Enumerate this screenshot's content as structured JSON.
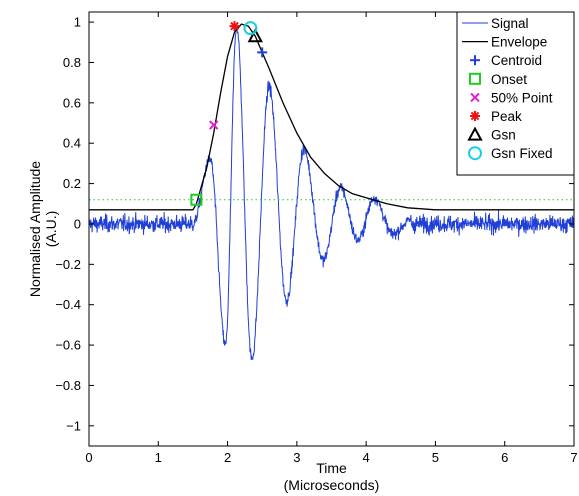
{
  "chart_data": {
    "type": "line",
    "xlabel": "Time",
    "xlabel_unit": "(Microseconds)",
    "ylabel": "Normalised Amplitude",
    "ylabel_unit": "(A.U.)",
    "xlim": [
      0,
      7
    ],
    "ylim": [
      -1.1,
      1.05
    ],
    "xticks": [
      "0",
      "1",
      "2",
      "3",
      "4",
      "5",
      "6",
      "7"
    ],
    "yticks": [
      "−1",
      "−0.8",
      "−0.6",
      "−0.4",
      "−0.2",
      "0",
      "0.2",
      "0.4",
      "0.6",
      "0.8",
      "1"
    ],
    "grid": false,
    "legend_position": "top-right",
    "threshold_line": {
      "y": 0.12,
      "style": "dotted",
      "color": "#22cc22"
    },
    "series": [
      {
        "name": "Signal",
        "kind": "line",
        "color": "#1f3fd6",
        "noise_std": 0.03,
        "baseline_x": [
          0,
          1.5
        ],
        "peaks": [
          {
            "x": 1.75,
            "y": 0.32
          },
          {
            "x": 1.97,
            "y": -0.6
          },
          {
            "x": 2.13,
            "y": 0.98
          },
          {
            "x": 2.35,
            "y": -0.67
          },
          {
            "x": 2.6,
            "y": 0.68
          },
          {
            "x": 2.85,
            "y": -0.38
          },
          {
            "x": 3.1,
            "y": 0.37
          },
          {
            "x": 3.38,
            "y": -0.18
          },
          {
            "x": 3.63,
            "y": 0.18
          },
          {
            "x": 3.88,
            "y": -0.08
          },
          {
            "x": 4.12,
            "y": 0.13
          },
          {
            "x": 4.38,
            "y": -0.05
          },
          {
            "x": 4.65,
            "y": 0.02
          }
        ],
        "tail_end_x": 7
      },
      {
        "name": "Envelope",
        "kind": "line",
        "color": "#000000",
        "x": [
          0,
          1.5,
          1.55,
          1.7,
          1.8,
          1.9,
          2.0,
          2.1,
          2.2,
          2.3,
          2.4,
          2.5,
          2.6,
          2.8,
          3.0,
          3.2,
          3.4,
          3.6,
          3.8,
          4.0,
          4.3,
          4.6,
          5.0,
          5.5,
          6.0,
          6.5,
          7.0
        ],
        "y": [
          0.07,
          0.07,
          0.1,
          0.28,
          0.45,
          0.65,
          0.83,
          0.95,
          0.99,
          0.98,
          0.93,
          0.85,
          0.77,
          0.6,
          0.45,
          0.33,
          0.25,
          0.19,
          0.15,
          0.13,
          0.1,
          0.08,
          0.07,
          0.07,
          0.07,
          0.07,
          0.07
        ]
      },
      {
        "name": "Centroid",
        "kind": "marker",
        "marker": "plus",
        "color": "#1f3fd6",
        "points": [
          {
            "x": 2.5,
            "y": 0.85
          }
        ]
      },
      {
        "name": "Onset",
        "kind": "marker",
        "marker": "square",
        "color": "#1fcc1f",
        "points": [
          {
            "x": 1.55,
            "y": 0.12
          }
        ]
      },
      {
        "name": "50% Point",
        "kind": "marker",
        "marker": "cross",
        "color": "#e020d0",
        "points": [
          {
            "x": 1.8,
            "y": 0.49
          }
        ]
      },
      {
        "name": "Peak",
        "kind": "marker",
        "marker": "asterisk",
        "color": "#ee1111",
        "points": [
          {
            "x": 2.1,
            "y": 0.98
          }
        ]
      },
      {
        "name": "Gsn",
        "kind": "marker",
        "marker": "triangle",
        "color": "#000000",
        "points": [
          {
            "x": 2.4,
            "y": 0.93
          }
        ]
      },
      {
        "name": "Gsn Fixed",
        "kind": "marker",
        "marker": "circle",
        "color": "#19d0e0",
        "points": [
          {
            "x": 2.33,
            "y": 0.97
          }
        ]
      }
    ]
  }
}
